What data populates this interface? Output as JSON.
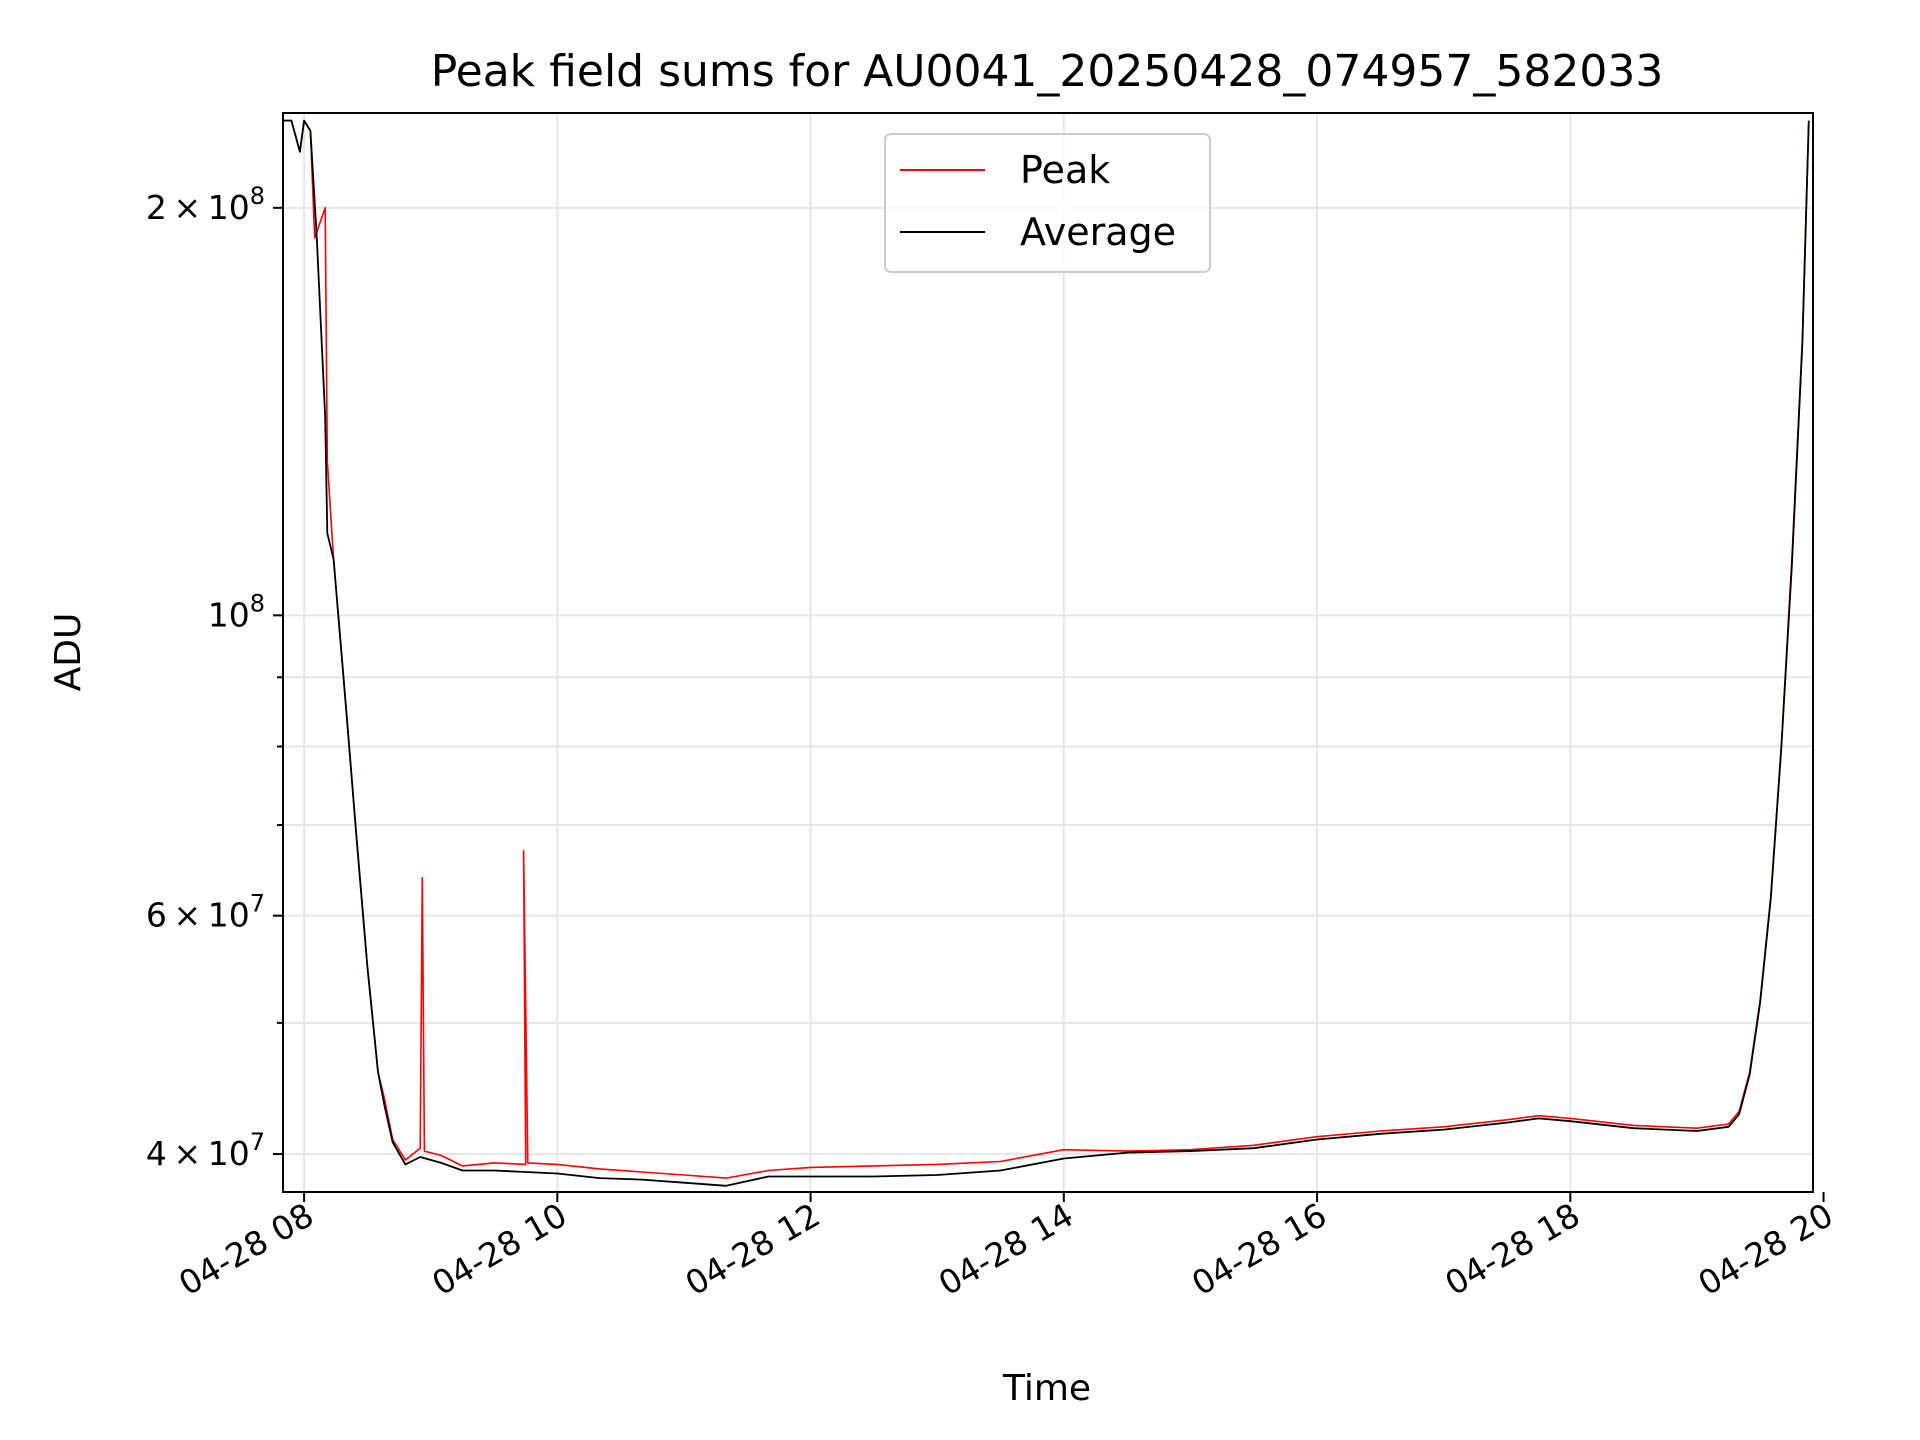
{
  "chart_data": {
    "type": "line",
    "title": "Peak field sums for AU0041_20250428_074957_582033",
    "xlabel": "Time",
    "ylabel": "ADU",
    "yscale": "log",
    "xlim": [
      "2025-04-28T07:50",
      "2025-04-28T19:55"
    ],
    "ylim": [
      37500000,
      235000000
    ],
    "grid": true,
    "legend": {
      "placement": "top-center",
      "entries": [
        "Peak",
        "Average"
      ]
    },
    "x_ticks": [
      {
        "value": "2025-04-28T08:00",
        "label": "04-28 08"
      },
      {
        "value": "2025-04-28T10:00",
        "label": "04-28 10"
      },
      {
        "value": "2025-04-28T12:00",
        "label": "04-28 12"
      },
      {
        "value": "2025-04-28T14:00",
        "label": "04-28 14"
      },
      {
        "value": "2025-04-28T16:00",
        "label": "04-28 16"
      },
      {
        "value": "2025-04-28T18:00",
        "label": "04-28 18"
      },
      {
        "value": "2025-04-28T20:00",
        "label": "04-28 20"
      }
    ],
    "y_major_ticks": [
      {
        "value": 40000000,
        "base": "4",
        "exp": "7",
        "label": "4 × 10^7"
      },
      {
        "value": 60000000,
        "base": "6",
        "exp": "7",
        "label": "6 × 10^7"
      },
      {
        "value": 100000000,
        "base": "",
        "exp": "8",
        "label": "10^8"
      },
      {
        "value": 200000000,
        "base": "2",
        "exp": "8",
        "label": "2 × 10^8"
      }
    ],
    "y_minor_ticks": [
      50000000,
      70000000,
      80000000,
      90000000
    ],
    "series": [
      {
        "name": "Peak",
        "color": "#ff0000",
        "points": [
          [
            "2025-04-28T07:50",
            232000000
          ],
          [
            "2025-04-28T07:54",
            232000000
          ],
          [
            "2025-04-28T07:58",
            220000000
          ],
          [
            "2025-04-28T08:00",
            232000000
          ],
          [
            "2025-04-28T08:03",
            228000000
          ],
          [
            "2025-04-28T08:05",
            190000000
          ],
          [
            "2025-04-28T08:10",
            200000000
          ],
          [
            "2025-04-28T08:11",
            130000000
          ],
          [
            "2025-04-28T08:14",
            110000000
          ],
          [
            "2025-04-28T08:20",
            85000000
          ],
          [
            "2025-04-28T08:25",
            68000000
          ],
          [
            "2025-04-28T08:30",
            55000000
          ],
          [
            "2025-04-28T08:35",
            46000000
          ],
          [
            "2025-04-28T08:38",
            44000000
          ],
          [
            "2025-04-28T08:42",
            41000000
          ],
          [
            "2025-04-28T08:48",
            39600000
          ],
          [
            "2025-04-28T08:55",
            40400000
          ],
          [
            "2025-04-28T08:56",
            64000000
          ],
          [
            "2025-04-28T08:57",
            40200000
          ],
          [
            "2025-04-28T09:05",
            39900000
          ],
          [
            "2025-04-28T09:15",
            39200000
          ],
          [
            "2025-04-28T09:30",
            39400000
          ],
          [
            "2025-04-28T09:45",
            39300000
          ],
          [
            "2025-04-28T09:44",
            67000000
          ],
          [
            "2025-04-28T09:46",
            39400000
          ],
          [
            "2025-04-28T10:00",
            39300000
          ],
          [
            "2025-04-28T10:20",
            39000000
          ],
          [
            "2025-04-28T10:40",
            38800000
          ],
          [
            "2025-04-28T11:00",
            38600000
          ],
          [
            "2025-04-28T11:20",
            38400000
          ],
          [
            "2025-04-28T11:40",
            38900000
          ],
          [
            "2025-04-28T12:00",
            39100000
          ],
          [
            "2025-04-28T12:30",
            39200000
          ],
          [
            "2025-04-28T13:00",
            39300000
          ],
          [
            "2025-04-28T13:30",
            39500000
          ],
          [
            "2025-04-28T14:00",
            40300000
          ],
          [
            "2025-04-28T14:30",
            40200000
          ],
          [
            "2025-04-28T15:00",
            40300000
          ],
          [
            "2025-04-28T15:30",
            40600000
          ],
          [
            "2025-04-28T16:00",
            41200000
          ],
          [
            "2025-04-28T16:30",
            41600000
          ],
          [
            "2025-04-28T17:00",
            41900000
          ],
          [
            "2025-04-28T17:30",
            42400000
          ],
          [
            "2025-04-28T17:45",
            42700000
          ],
          [
            "2025-04-28T18:00",
            42500000
          ],
          [
            "2025-04-28T18:30",
            42000000
          ],
          [
            "2025-04-28T19:00",
            41800000
          ],
          [
            "2025-04-28T19:15",
            42100000
          ],
          [
            "2025-04-28T19:20",
            43000000
          ],
          [
            "2025-04-28T19:25",
            46000000
          ],
          [
            "2025-04-28T19:30",
            52000000
          ],
          [
            "2025-04-28T19:35",
            62000000
          ],
          [
            "2025-04-28T19:40",
            80000000
          ],
          [
            "2025-04-28T19:45",
            110000000
          ],
          [
            "2025-04-28T19:50",
            160000000
          ],
          [
            "2025-04-28T19:53",
            232000000
          ]
        ]
      },
      {
        "name": "Average",
        "color": "#000000",
        "points": [
          [
            "2025-04-28T07:50",
            232000000
          ],
          [
            "2025-04-28T07:54",
            232000000
          ],
          [
            "2025-04-28T07:58",
            220000000
          ],
          [
            "2025-04-28T08:00",
            232000000
          ],
          [
            "2025-04-28T08:03",
            228000000
          ],
          [
            "2025-04-28T08:06",
            190000000
          ],
          [
            "2025-04-28T08:10",
            140000000
          ],
          [
            "2025-04-28T08:11",
            115000000
          ],
          [
            "2025-04-28T08:14",
            110000000
          ],
          [
            "2025-04-28T08:20",
            85000000
          ],
          [
            "2025-04-28T08:25",
            68000000
          ],
          [
            "2025-04-28T08:30",
            55000000
          ],
          [
            "2025-04-28T08:35",
            46000000
          ],
          [
            "2025-04-28T08:38",
            43500000
          ],
          [
            "2025-04-28T08:42",
            40800000
          ],
          [
            "2025-04-28T08:48",
            39300000
          ],
          [
            "2025-04-28T08:55",
            39800000
          ],
          [
            "2025-04-28T09:05",
            39400000
          ],
          [
            "2025-04-28T09:15",
            38900000
          ],
          [
            "2025-04-28T09:30",
            38900000
          ],
          [
            "2025-04-28T09:45",
            38800000
          ],
          [
            "2025-04-28T10:00",
            38700000
          ],
          [
            "2025-04-28T10:20",
            38400000
          ],
          [
            "2025-04-28T10:40",
            38300000
          ],
          [
            "2025-04-28T11:00",
            38100000
          ],
          [
            "2025-04-28T11:20",
            37900000
          ],
          [
            "2025-04-28T11:40",
            38500000
          ],
          [
            "2025-04-28T12:00",
            38500000
          ],
          [
            "2025-04-28T12:30",
            38500000
          ],
          [
            "2025-04-28T13:00",
            38600000
          ],
          [
            "2025-04-28T13:30",
            38900000
          ],
          [
            "2025-04-28T14:00",
            39700000
          ],
          [
            "2025-04-28T14:30",
            40100000
          ],
          [
            "2025-04-28T15:00",
            40200000
          ],
          [
            "2025-04-28T15:30",
            40400000
          ],
          [
            "2025-04-28T16:00",
            41000000
          ],
          [
            "2025-04-28T16:30",
            41400000
          ],
          [
            "2025-04-28T17:00",
            41700000
          ],
          [
            "2025-04-28T17:30",
            42200000
          ],
          [
            "2025-04-28T17:45",
            42500000
          ],
          [
            "2025-04-28T18:00",
            42300000
          ],
          [
            "2025-04-28T18:30",
            41800000
          ],
          [
            "2025-04-28T19:00",
            41600000
          ],
          [
            "2025-04-28T19:15",
            41900000
          ],
          [
            "2025-04-28T19:20",
            42800000
          ],
          [
            "2025-04-28T19:25",
            45800000
          ],
          [
            "2025-04-28T19:30",
            51800000
          ],
          [
            "2025-04-28T19:35",
            61800000
          ],
          [
            "2025-04-28T19:40",
            79800000
          ],
          [
            "2025-04-28T19:45",
            109000000
          ],
          [
            "2025-04-28T19:50",
            159000000
          ],
          [
            "2025-04-28T19:53",
            232000000
          ]
        ]
      }
    ]
  }
}
